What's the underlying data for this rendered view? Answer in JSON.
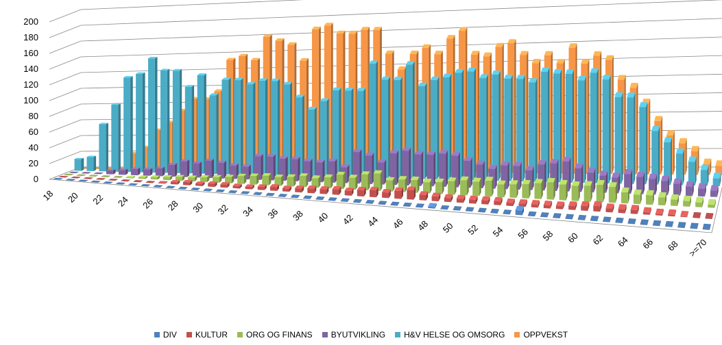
{
  "chart_data": {
    "type": "bar",
    "style": "3d-column",
    "grid": true,
    "legend_position": "bottom",
    "ylim": [
      0,
      200
    ],
    "y_ticks": [
      "0",
      "20",
      "40",
      "60",
      "80",
      "100",
      "120",
      "140",
      "160",
      "180",
      "200"
    ],
    "categories": [
      "18",
      "19",
      "20",
      "21",
      "22",
      "23",
      "24",
      "25",
      "26",
      "27",
      "28",
      "29",
      "30",
      "31",
      "32",
      "33",
      "34",
      "35",
      "36",
      "37",
      "38",
      "39",
      "40",
      "41",
      "42",
      "43",
      "44",
      "45",
      "46",
      "47",
      "48",
      "49",
      "50",
      "51",
      "52",
      "53",
      "54",
      "55",
      "56",
      "57",
      "58",
      "59",
      "60",
      "61",
      "62",
      "63",
      "64",
      "65",
      "66",
      "67",
      "68",
      "69",
      ">=70"
    ],
    "x_tick_labels": [
      "18",
      "20",
      "22",
      "24",
      "26",
      "28",
      "30",
      "32",
      "34",
      "36",
      "38",
      "40",
      "42",
      "44",
      "46",
      "48",
      "50",
      "52",
      "54",
      "56",
      "58",
      "60",
      "62",
      "64",
      "66",
      "68",
      ">=70"
    ],
    "series": [
      {
        "name": "DIV",
        "color": "#4f81bd",
        "values": [
          0,
          0,
          0,
          0,
          0,
          0,
          0,
          0,
          0,
          0,
          0,
          0,
          0,
          0,
          0,
          0,
          0,
          0,
          0,
          0,
          0,
          0,
          0,
          0,
          0,
          0,
          0,
          0,
          0,
          0,
          2,
          0,
          0,
          0,
          0,
          0,
          0,
          6,
          0,
          0,
          0,
          0,
          0,
          0,
          0,
          0,
          0,
          0,
          0,
          0,
          0,
          0,
          0
        ]
      },
      {
        "name": "KULTUR",
        "color": "#c0504d",
        "values": [
          0,
          0,
          0,
          0,
          0,
          0,
          0,
          0,
          1,
          3,
          4,
          3,
          4,
          4,
          3,
          3,
          4,
          5,
          4,
          5,
          6,
          6,
          7,
          6,
          8,
          9,
          7,
          10,
          12,
          7,
          6,
          5,
          5,
          5,
          5,
          5,
          4,
          4,
          4,
          4,
          4,
          5,
          6,
          7,
          5,
          5,
          5,
          3,
          2,
          2,
          1,
          0,
          0
        ]
      },
      {
        "name": "ORG OG FINANS",
        "color": "#9bbb59",
        "values": [
          0,
          0,
          0,
          0,
          0,
          1,
          2,
          3,
          4,
          5,
          5,
          6,
          7,
          8,
          10,
          11,
          12,
          11,
          12,
          14,
          12,
          14,
          18,
          15,
          20,
          22,
          14,
          16,
          16,
          14,
          15,
          17,
          19,
          18,
          20,
          16,
          17,
          18,
          20,
          22,
          20,
          19,
          20,
          22,
          20,
          14,
          12,
          12,
          10,
          8,
          7,
          6,
          4
        ]
      },
      {
        "name": "BYUTVIKLING",
        "color": "#8064a2",
        "values": [
          0,
          0,
          0,
          5,
          6,
          8,
          8,
          10,
          15,
          20,
          18,
          22,
          20,
          17,
          16,
          30,
          30,
          28,
          28,
          26,
          25,
          27,
          20,
          40,
          36,
          28,
          40,
          44,
          40,
          40,
          42,
          40,
          34,
          30,
          25,
          30,
          30,
          25,
          33,
          35,
          38,
          30,
          25,
          22,
          20,
          25,
          22,
          20,
          18,
          15,
          12,
          10,
          8
        ]
      },
      {
        "name": "H&V HELSE OG OMSORG",
        "color": "#4bacc6",
        "values": [
          15,
          18,
          60,
          85,
          120,
          125,
          145,
          130,
          130,
          110,
          125,
          100,
          120,
          120,
          115,
          120,
          120,
          116,
          100,
          85,
          96,
          110,
          110,
          110,
          145,
          125,
          125,
          145,
          118,
          126,
          130,
          136,
          138,
          130,
          135,
          130,
          130,
          126,
          140,
          138,
          138,
          130,
          140,
          132,
          110,
          110,
          98,
          68,
          54,
          40,
          30,
          20,
          10
        ]
      },
      {
        "name": "OPPVEKST",
        "color": "#f79646",
        "values": [
          0,
          0,
          0,
          0,
          20,
          28,
          50,
          60,
          75,
          90,
          90,
          100,
          140,
          145,
          140,
          170,
          165,
          160,
          140,
          180,
          185,
          175,
          175,
          180,
          180,
          150,
          130,
          150,
          158,
          150,
          170,
          180,
          150,
          148,
          160,
          165,
          150,
          140,
          150,
          140,
          160,
          140,
          150,
          145,
          120,
          110,
          90,
          68,
          50,
          40,
          30,
          14,
          12
        ]
      }
    ]
  }
}
